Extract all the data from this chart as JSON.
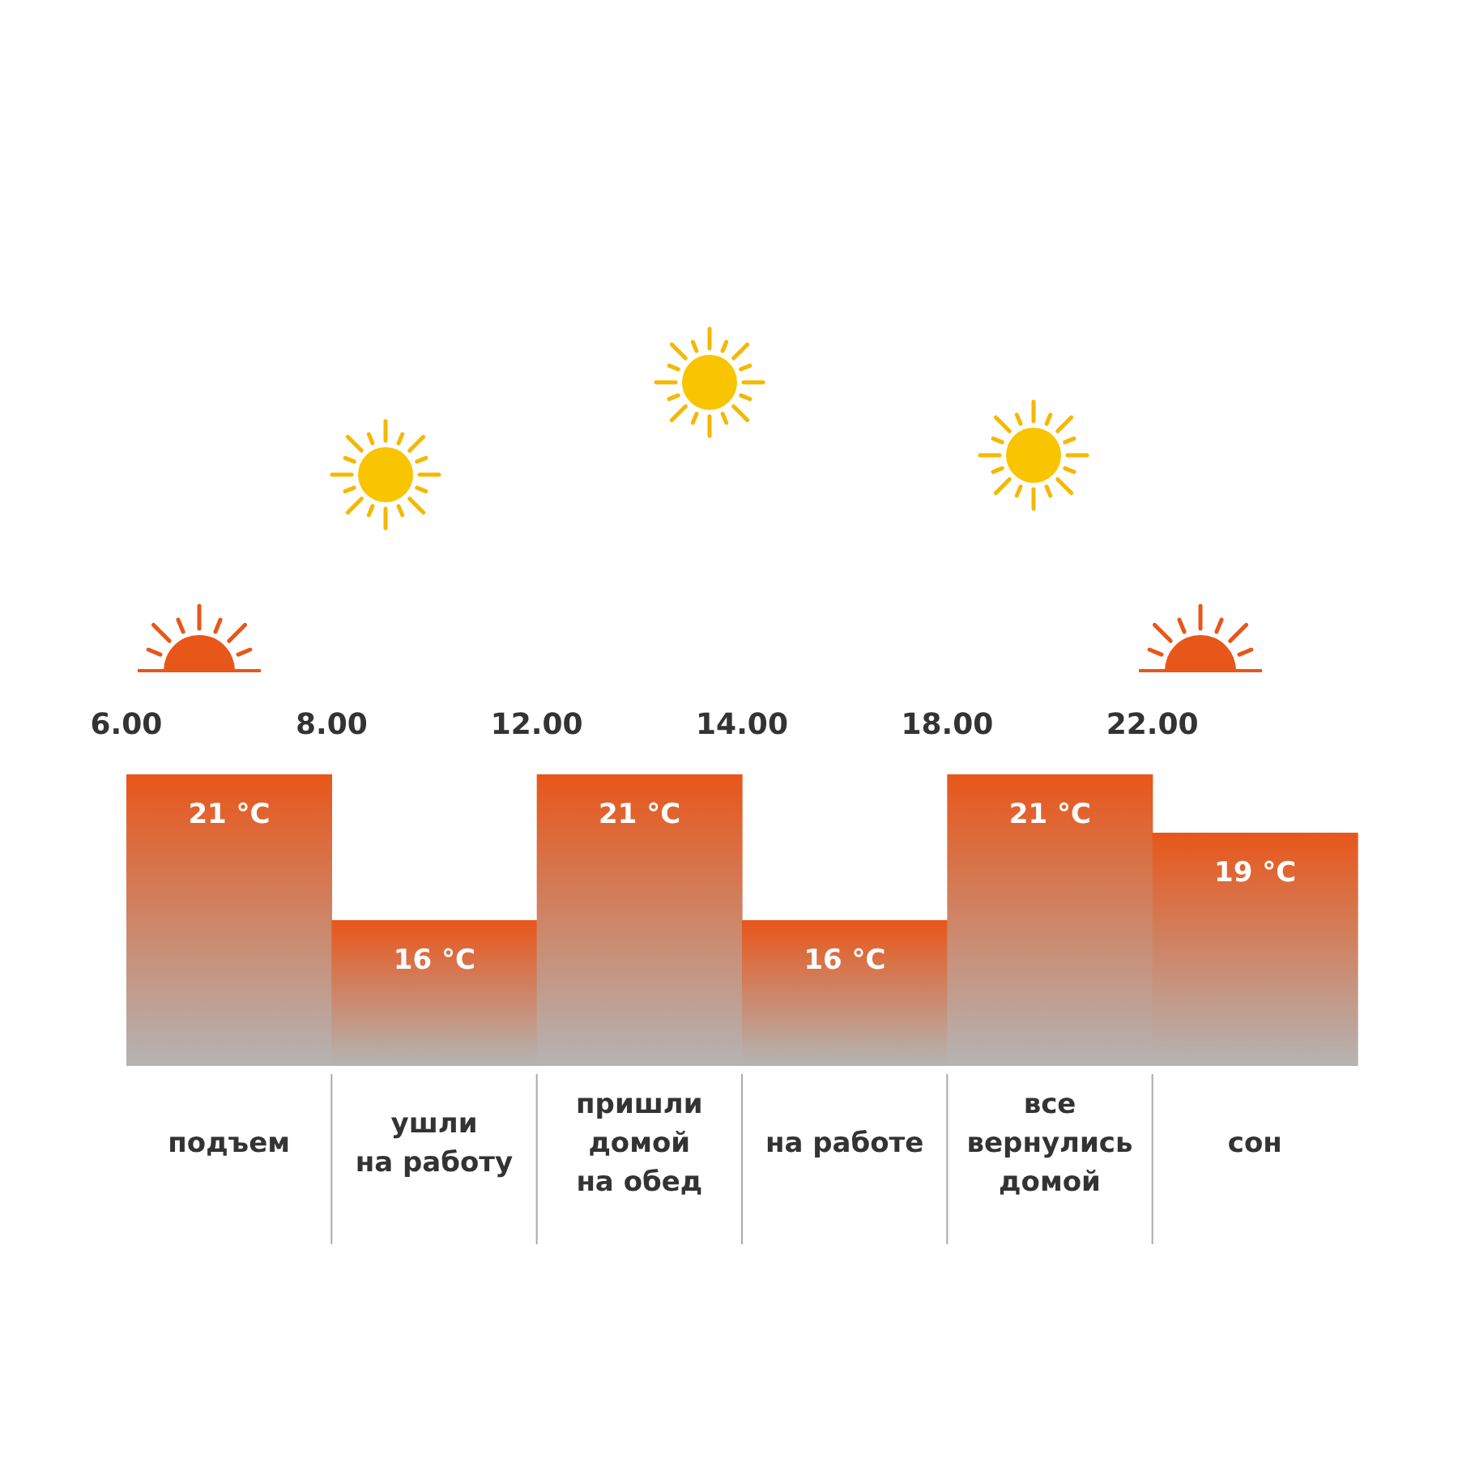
{
  "chart_data": {
    "type": "bar",
    "categories": [
      "подъем",
      "ушли\nна работу",
      "пришли\nдомой\nна обед",
      "на работе",
      "все\nвернулись\nдомой",
      "сон"
    ],
    "values": [
      21,
      16,
      21,
      16,
      21,
      19
    ],
    "value_labels": [
      "21 °C",
      "16 °C",
      "21 °C",
      "16 °C",
      "21 °C",
      "19 °C"
    ],
    "color": "#e8561a",
    "ylim": [
      11,
      21
    ],
    "tick_labels": "x",
    "annotations": [
      "6.00",
      "8.00",
      "12.00",
      "14.00",
      "18.00",
      "22.00"
    ]
  }
}
